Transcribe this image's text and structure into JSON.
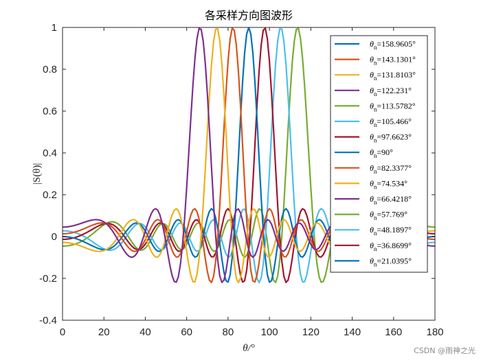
{
  "chart_data": {
    "type": "line",
    "title": "各采样方向图波形",
    "xlabel": "θ/°",
    "ylabel": "|S(θ)|",
    "xlim": [
      0,
      180
    ],
    "ylim": [
      -0.4,
      1
    ],
    "xticks": [
      "0",
      "20",
      "40",
      "60",
      "80",
      "100",
      "120",
      "140",
      "160",
      "180"
    ],
    "yticks": [
      "-0.4",
      "-0.2",
      "0",
      "0.2",
      "0.4",
      "0.6",
      "0.8",
      "1"
    ],
    "grid": false,
    "legend_position": "top-right",
    "legend_symbol": "θ",
    "legend_subscript": "n",
    "n_elements": 16,
    "x_sampling": [
      0,
      180,
      1
    ],
    "series": [
      {
        "name": "θn=158.9605°",
        "legend_value": "158.9605°",
        "theta_deg": 158.9605,
        "color": "#0072BD",
        "visible_on_plot": false
      },
      {
        "name": "θn=143.1301°",
        "legend_value": "143.1301°",
        "theta_deg": 143.1301,
        "color": "#D95319",
        "visible_on_plot": false
      },
      {
        "name": "θn=131.8103°",
        "legend_value": "131.8103°",
        "theta_deg": 131.8103,
        "color": "#EDB120",
        "visible_on_plot": false
      },
      {
        "name": "θn=122.231°",
        "legend_value": "122.231°",
        "theta_deg": 122.231,
        "color": "#7E2F8E",
        "visible_on_plot": false
      },
      {
        "name": "θn=113.5782°",
        "legend_value": "113.5782°",
        "theta_deg": 113.5782,
        "color": "#77AC30",
        "visible_on_plot": true
      },
      {
        "name": "θn=105.466°",
        "legend_value": "105.466°",
        "theta_deg": 105.466,
        "color": "#4DBEEE",
        "visible_on_plot": true
      },
      {
        "name": "θn=97.6623°",
        "legend_value": "97.6623°",
        "theta_deg": 97.6623,
        "color": "#A2142F",
        "visible_on_plot": true
      },
      {
        "name": "θn=90°",
        "legend_value": "90°",
        "theta_deg": 90,
        "color": "#0072BD",
        "visible_on_plot": true
      },
      {
        "name": "θn=82.3377°",
        "legend_value": "82.3377°",
        "theta_deg": 82.3377,
        "color": "#D95319",
        "visible_on_plot": true
      },
      {
        "name": "θn=74.534°",
        "legend_value": "74.534°",
        "theta_deg": 74.534,
        "color": "#EDB120",
        "visible_on_plot": true
      },
      {
        "name": "θn=66.4218°",
        "legend_value": "66.4218°",
        "theta_deg": 66.4218,
        "color": "#7E2F8E",
        "visible_on_plot": true
      },
      {
        "name": "θn=57.769°",
        "legend_value": "57.769°",
        "theta_deg": 57.769,
        "color": "#77AC30",
        "visible_on_plot": false
      },
      {
        "name": "θn=48.1897°",
        "legend_value": "48.1897°",
        "theta_deg": 48.1897,
        "color": "#4DBEEE",
        "visible_on_plot": false
      },
      {
        "name": "θn=36.8699°",
        "legend_value": "36.8699°",
        "theta_deg": 36.8699,
        "color": "#A2142F",
        "visible_on_plot": false
      },
      {
        "name": "θn=21.0395°",
        "legend_value": "21.0395°",
        "theta_deg": 21.0395,
        "color": "#0072BD",
        "visible_on_plot": false
      }
    ]
  },
  "watermark": "CSDN @雨神之光"
}
